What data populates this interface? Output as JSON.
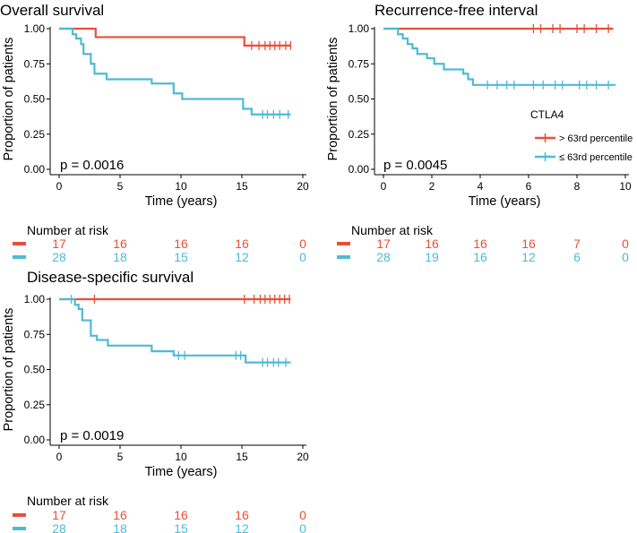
{
  "legend": {
    "title": "CTLA4",
    "groups": [
      {
        "key": "high",
        "label": "> 63rd percentile",
        "color": "#E8503A"
      },
      {
        "key": "low",
        "label": "≤ 63rd percentile",
        "color": "#4DBBD5"
      }
    ]
  },
  "risk_title": "Number at risk",
  "chart_data": [
    {
      "id": "os",
      "type": "line",
      "title": "Overall survival",
      "xlabel": "Time (years)",
      "ylabel": "Proportion of patients",
      "xlim": [
        0,
        20
      ],
      "ylim": [
        0,
        1
      ],
      "xticks": [
        "0",
        "5",
        "10",
        "15",
        "20"
      ],
      "xtick_values": [
        0,
        5,
        10,
        15,
        20
      ],
      "yticks": [
        "0.00",
        "0.25",
        "0.50",
        "0.75",
        "1.00"
      ],
      "ytick_values": [
        0,
        0.25,
        0.5,
        0.75,
        1
      ],
      "pvalue": "p = 0.0016",
      "series": [
        {
          "name": "> 63rd percentile",
          "color": "#E8503A",
          "steps": [
            [
              0,
              1.0
            ],
            [
              3.0,
              0.94
            ],
            [
              15.2,
              0.88
            ]
          ],
          "end": 19,
          "censors": [
            [
              15.8,
              0.88
            ],
            [
              16.4,
              0.88
            ],
            [
              16.9,
              0.88
            ],
            [
              17.3,
              0.88
            ],
            [
              17.7,
              0.88
            ],
            [
              18.1,
              0.88
            ],
            [
              18.6,
              0.88
            ],
            [
              19.0,
              0.88
            ]
          ]
        },
        {
          "name": "≤ 63rd percentile",
          "color": "#4DBBD5",
          "steps": [
            [
              0,
              1.0
            ],
            [
              1.1,
              0.96
            ],
            [
              1.4,
              0.93
            ],
            [
              1.8,
              0.89
            ],
            [
              2.0,
              0.82
            ],
            [
              2.6,
              0.75
            ],
            [
              2.9,
              0.68
            ],
            [
              3.9,
              0.64
            ],
            [
              7.6,
              0.61
            ],
            [
              9.4,
              0.54
            ],
            [
              10.1,
              0.5
            ],
            [
              15.1,
              0.43
            ],
            [
              15.8,
              0.39
            ]
          ],
          "end": 19,
          "censors": [
            [
              16.7,
              0.39
            ],
            [
              17.1,
              0.39
            ],
            [
              17.6,
              0.39
            ],
            [
              18.1,
              0.39
            ],
            [
              18.8,
              0.39
            ]
          ]
        }
      ],
      "risk_ticks": [
        0,
        5,
        10,
        15,
        20
      ],
      "risk": [
        {
          "name": "> 63rd percentile",
          "color": "#E8503A",
          "counts": [
            "17",
            "16",
            "16",
            "16",
            "0"
          ]
        },
        {
          "name": "≤ 63rd percentile",
          "color": "#4DBBD5",
          "counts": [
            "28",
            "18",
            "15",
            "12",
            "0"
          ]
        }
      ]
    },
    {
      "id": "rfi",
      "type": "line",
      "title": "Recurrence-free interval",
      "xlabel": "Time (years)",
      "ylabel": "Proportion of patients",
      "xlim": [
        0,
        10
      ],
      "ylim": [
        0,
        1
      ],
      "xticks": [
        "0",
        "2",
        "4",
        "6",
        "8",
        "10"
      ],
      "xtick_values": [
        0,
        2,
        4,
        6,
        8,
        10
      ],
      "yticks": [
        "0.00",
        "0.25",
        "0.50",
        "0.75",
        "1.00"
      ],
      "ytick_values": [
        0,
        0.25,
        0.5,
        0.75,
        1
      ],
      "pvalue": "p = 0.0045",
      "series": [
        {
          "name": "> 63rd percentile",
          "color": "#E8503A",
          "steps": [
            [
              0,
              1.0
            ]
          ],
          "end": 9.5,
          "censors": [
            [
              6.2,
              1.0
            ],
            [
              6.5,
              1.0
            ],
            [
              7.0,
              1.0
            ],
            [
              7.3,
              1.0
            ],
            [
              8.0,
              1.0
            ],
            [
              8.3,
              1.0
            ],
            [
              8.8,
              1.0
            ],
            [
              9.3,
              1.0
            ]
          ]
        },
        {
          "name": "≤ 63rd percentile",
          "color": "#4DBBD5",
          "steps": [
            [
              0,
              1.0
            ],
            [
              0.6,
              0.96
            ],
            [
              0.8,
              0.93
            ],
            [
              1.0,
              0.89
            ],
            [
              1.2,
              0.86
            ],
            [
              1.4,
              0.82
            ],
            [
              1.8,
              0.79
            ],
            [
              2.1,
              0.75
            ],
            [
              2.5,
              0.71
            ],
            [
              3.3,
              0.68
            ],
            [
              3.5,
              0.64
            ],
            [
              3.7,
              0.6
            ]
          ],
          "end": 9.6,
          "censors": [
            [
              4.3,
              0.6
            ],
            [
              4.7,
              0.6
            ],
            [
              5.1,
              0.6
            ],
            [
              5.4,
              0.6
            ],
            [
              6.2,
              0.6
            ],
            [
              6.6,
              0.6
            ],
            [
              7.1,
              0.6
            ],
            [
              7.4,
              0.6
            ],
            [
              8.1,
              0.6
            ],
            [
              8.4,
              0.6
            ],
            [
              8.8,
              0.6
            ],
            [
              9.3,
              0.6
            ]
          ]
        }
      ],
      "risk_ticks": [
        0,
        2,
        4,
        6,
        8,
        10
      ],
      "risk": [
        {
          "name": "> 63rd percentile",
          "color": "#E8503A",
          "counts": [
            "17",
            "16",
            "16",
            "16",
            "7",
            "0"
          ]
        },
        {
          "name": "≤ 63rd percentile",
          "color": "#4DBBD5",
          "counts": [
            "28",
            "19",
            "16",
            "12",
            "6",
            "0"
          ]
        }
      ]
    },
    {
      "id": "dss",
      "type": "line",
      "title": "Disease-specific survival",
      "xlabel": "Time (years)",
      "ylabel": "Proportion of patients",
      "xlim": [
        0,
        20
      ],
      "ylim": [
        0,
        1
      ],
      "xticks": [
        "0",
        "5",
        "10",
        "15",
        "20"
      ],
      "xtick_values": [
        0,
        5,
        10,
        15,
        20
      ],
      "yticks": [
        "0.00",
        "0.25",
        "0.50",
        "0.75",
        "1.00"
      ],
      "ytick_values": [
        0,
        0.25,
        0.5,
        0.75,
        1
      ],
      "pvalue": "p = 0.0019",
      "series": [
        {
          "name": "> 63rd percentile",
          "color": "#E8503A",
          "steps": [
            [
              0,
              1.0
            ]
          ],
          "end": 19,
          "censors": [
            [
              2.9,
              1.0
            ],
            [
              15.2,
              1.0
            ],
            [
              16.0,
              1.0
            ],
            [
              16.5,
              1.0
            ],
            [
              16.9,
              1.0
            ],
            [
              17.3,
              1.0
            ],
            [
              17.7,
              1.0
            ],
            [
              18.1,
              1.0
            ],
            [
              18.5,
              1.0
            ],
            [
              18.9,
              1.0
            ]
          ]
        },
        {
          "name": "≤ 63rd percentile",
          "color": "#4DBBD5",
          "steps": [
            [
              0,
              1.0
            ],
            [
              1.3,
              0.96
            ],
            [
              1.6,
              0.93
            ],
            [
              1.9,
              0.85
            ],
            [
              2.6,
              0.74
            ],
            [
              3.1,
              0.71
            ],
            [
              4.0,
              0.67
            ],
            [
              7.6,
              0.63
            ],
            [
              9.4,
              0.6
            ],
            [
              15.3,
              0.55
            ]
          ],
          "end": 19,
          "censors": [
            [
              1.0,
              1.0
            ],
            [
              9.8,
              0.6
            ],
            [
              10.3,
              0.6
            ],
            [
              14.5,
              0.6
            ],
            [
              14.9,
              0.6
            ],
            [
              16.7,
              0.55
            ],
            [
              17.1,
              0.55
            ],
            [
              17.6,
              0.55
            ],
            [
              18.0,
              0.55
            ],
            [
              18.6,
              0.55
            ]
          ]
        }
      ],
      "risk_ticks": [
        0,
        5,
        10,
        15,
        20
      ],
      "risk": [
        {
          "name": "> 63rd percentile",
          "color": "#E8503A",
          "counts": [
            "17",
            "16",
            "16",
            "16",
            "0"
          ]
        },
        {
          "name": "≤ 63rd percentile",
          "color": "#4DBBD5",
          "counts": [
            "28",
            "18",
            "15",
            "12",
            "0"
          ]
        }
      ]
    }
  ]
}
